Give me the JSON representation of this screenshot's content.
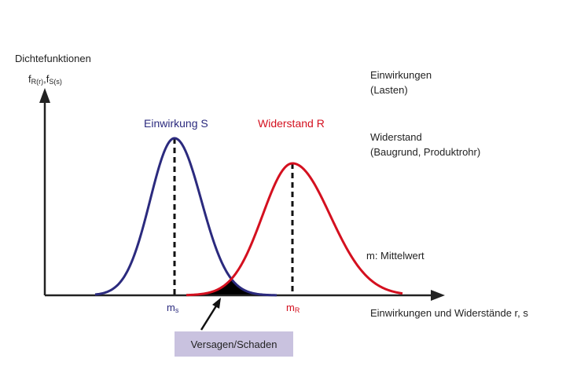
{
  "y_axis": {
    "title": "Dichtefunktionen",
    "symbol_f1": "f",
    "symbol_sub1": "R(r)",
    "symbol_sep": ",",
    "symbol_f2": "f",
    "symbol_sub2": "S(s)"
  },
  "x_axis": {
    "title": "Einwirkungen und Widerstände r, s"
  },
  "curves": {
    "load": {
      "label": "Einwirkung S",
      "mean_symbol": "m",
      "mean_sub": "s",
      "color": "#2b2a7e"
    },
    "resistance": {
      "label": "Widerstand R",
      "mean_symbol": "m",
      "mean_sub": "R",
      "color": "#d4101f"
    }
  },
  "failure": {
    "label": "Versagen/Schaden",
    "box_color": "#c9c2df"
  },
  "legend": {
    "load_line1": "Einwirkungen",
    "load_line2": "(Lasten)",
    "resistance_line1": "Widerstand",
    "resistance_line2": "(Baugrund, Produktrohr)",
    "mean_note": "m: Mittelwert"
  }
}
